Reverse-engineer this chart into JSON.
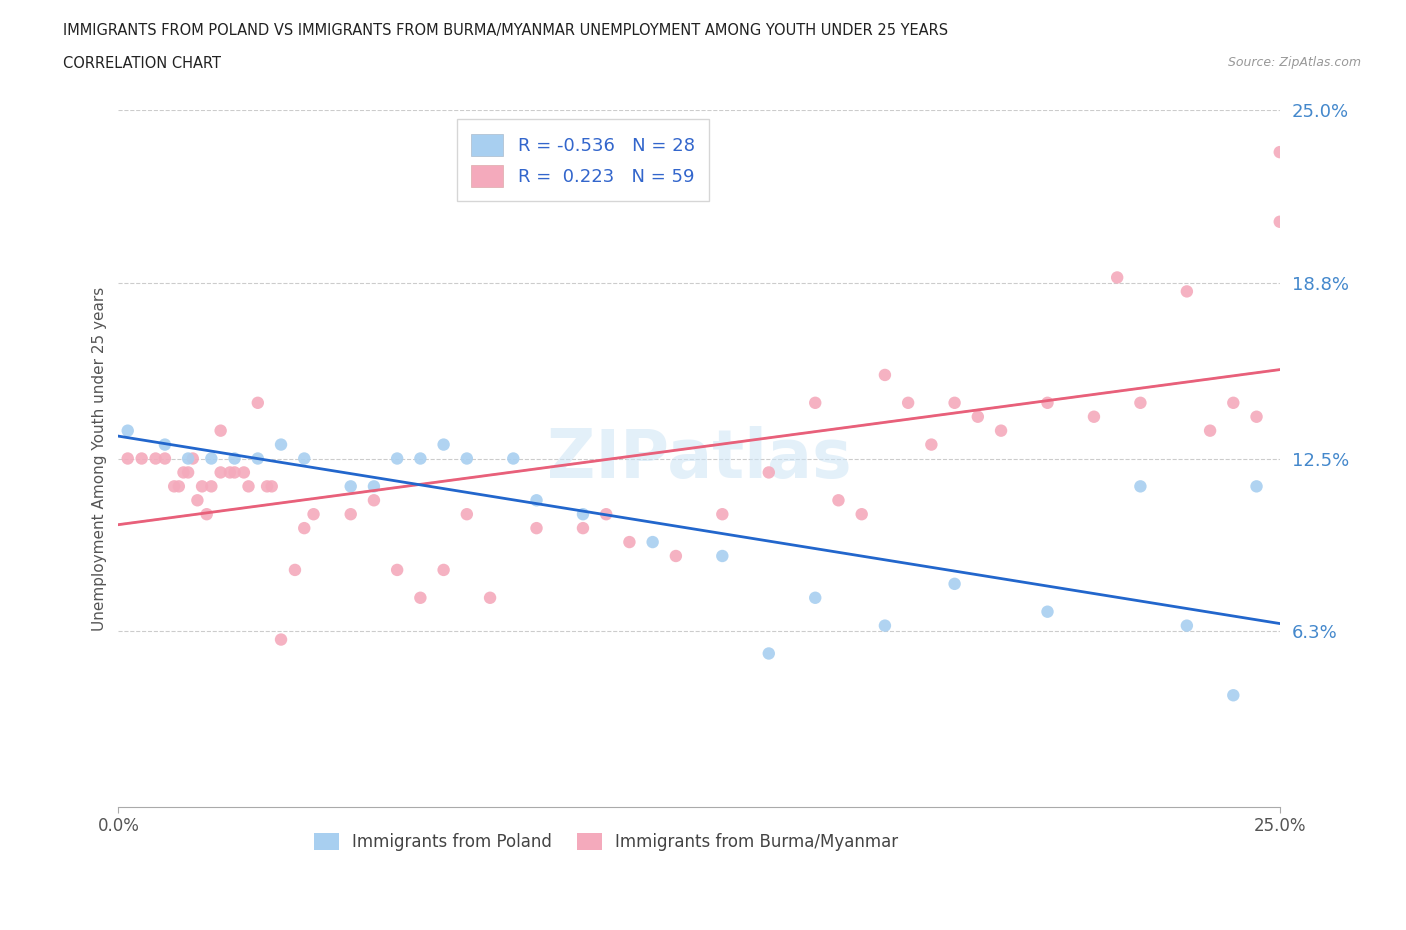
{
  "title_line1": "IMMIGRANTS FROM POLAND VS IMMIGRANTS FROM BURMA/MYANMAR UNEMPLOYMENT AMONG YOUTH UNDER 25 YEARS",
  "title_line2": "CORRELATION CHART",
  "source": "Source: ZipAtlas.com",
  "ylabel": "Unemployment Among Youth under 25 years",
  "xlim": [
    0.0,
    0.25
  ],
  "ylim": [
    0.0,
    0.25
  ],
  "ytick_vals": [
    0.063,
    0.125,
    0.188,
    0.25
  ],
  "ytick_labels": [
    "6.3%",
    "12.5%",
    "18.8%",
    "25.0%"
  ],
  "xtick_vals": [
    0.0,
    0.25
  ],
  "xtick_labels": [
    "0.0%",
    "25.0%"
  ],
  "hlines": [
    0.063,
    0.125,
    0.188,
    0.25
  ],
  "color_poland": "#a8cff0",
  "color_burma": "#f4aabc",
  "line_color_poland": "#2266cc",
  "line_color_burma": "#e8607a",
  "legend_R_poland": "-0.536",
  "legend_N_poland": "28",
  "legend_R_burma": "0.223",
  "legend_N_burma": "59",
  "poland_x": [
    0.002,
    0.01,
    0.015,
    0.02,
    0.025,
    0.03,
    0.035,
    0.04,
    0.05,
    0.055,
    0.06,
    0.065,
    0.07,
    0.075,
    0.085,
    0.09,
    0.1,
    0.115,
    0.13,
    0.14,
    0.15,
    0.165,
    0.18,
    0.2,
    0.22,
    0.23,
    0.24,
    0.245
  ],
  "poland_y": [
    0.135,
    0.13,
    0.125,
    0.125,
    0.125,
    0.125,
    0.13,
    0.125,
    0.115,
    0.115,
    0.125,
    0.125,
    0.13,
    0.125,
    0.125,
    0.11,
    0.105,
    0.095,
    0.09,
    0.055,
    0.075,
    0.065,
    0.08,
    0.07,
    0.115,
    0.065,
    0.04,
    0.115
  ],
  "burma_x": [
    0.002,
    0.005,
    0.008,
    0.01,
    0.012,
    0.013,
    0.014,
    0.015,
    0.016,
    0.017,
    0.018,
    0.019,
    0.02,
    0.022,
    0.022,
    0.024,
    0.025,
    0.027,
    0.028,
    0.03,
    0.032,
    0.033,
    0.035,
    0.038,
    0.04,
    0.042,
    0.05,
    0.055,
    0.06,
    0.065,
    0.07,
    0.075,
    0.08,
    0.09,
    0.1,
    0.105,
    0.11,
    0.12,
    0.13,
    0.14,
    0.15,
    0.155,
    0.16,
    0.165,
    0.17,
    0.175,
    0.18,
    0.185,
    0.19,
    0.2,
    0.21,
    0.215,
    0.22,
    0.23,
    0.235,
    0.24,
    0.245,
    0.25,
    0.25
  ],
  "burma_y": [
    0.125,
    0.125,
    0.125,
    0.125,
    0.115,
    0.115,
    0.12,
    0.12,
    0.125,
    0.11,
    0.115,
    0.105,
    0.115,
    0.135,
    0.12,
    0.12,
    0.12,
    0.12,
    0.115,
    0.145,
    0.115,
    0.115,
    0.06,
    0.085,
    0.1,
    0.105,
    0.105,
    0.11,
    0.085,
    0.075,
    0.085,
    0.105,
    0.075,
    0.1,
    0.1,
    0.105,
    0.095,
    0.09,
    0.105,
    0.12,
    0.145,
    0.11,
    0.105,
    0.155,
    0.145,
    0.13,
    0.145,
    0.14,
    0.135,
    0.145,
    0.14,
    0.19,
    0.145,
    0.185,
    0.135,
    0.145,
    0.14,
    0.21,
    0.235
  ]
}
